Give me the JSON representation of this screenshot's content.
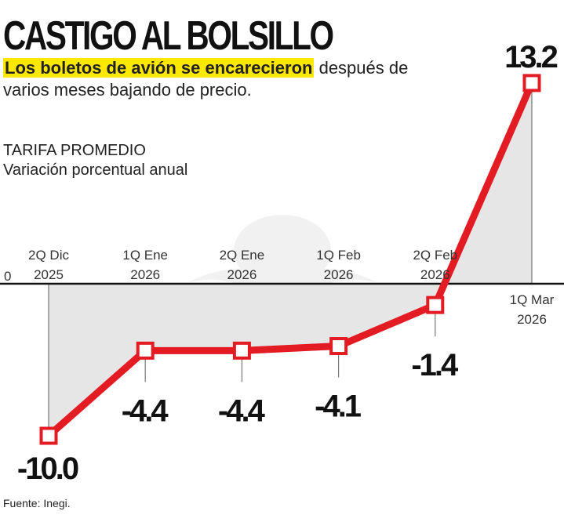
{
  "header": {
    "title": "CASTIGO AL BOLSILLO",
    "subtitle_highlight": "Los boletos de avión se encarecieron",
    "subtitle_rest": " después de varios meses bajando de precio."
  },
  "measure": {
    "line1": "TARIFA PROMEDIO",
    "line2": "Variación porcentual anual"
  },
  "footer": {
    "source": "Fuente: Inegi."
  },
  "chart_data": {
    "type": "line",
    "categories": [
      [
        "2Q Dic",
        "2025"
      ],
      [
        "1Q Ene",
        "2026"
      ],
      [
        "2Q Ene",
        "2026"
      ],
      [
        "1Q Feb",
        "2026"
      ],
      [
        "2Q Feb",
        "2026"
      ],
      [
        "1Q Mar",
        "2026"
      ]
    ],
    "values": [
      -10.0,
      -4.4,
      -4.4,
      -4.1,
      -1.4,
      13.2
    ],
    "value_labels": [
      "-10.0",
      "-4.4",
      "-4.4",
      "-4.1",
      "-1.4",
      "13.2"
    ],
    "zero_label": "0",
    "ylim": [
      -10.0,
      13.2
    ],
    "grid": false,
    "colors": {
      "line": "#e31b23",
      "area": "#e6e6e6",
      "marker_fill": "#ffffff"
    }
  }
}
